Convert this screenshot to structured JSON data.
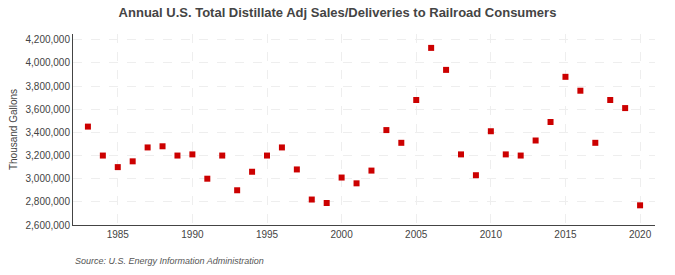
{
  "chart_data": {
    "type": "scatter",
    "title": "Annual U.S. Total Distillate Adj Sales/Deliveries to Railroad Consumers",
    "ylabel": "Thousand Gallons",
    "source": "Source: U.S. Energy Information Administration",
    "x": [
      1983,
      1984,
      1985,
      1986,
      1987,
      1988,
      1989,
      1990,
      1991,
      1992,
      1993,
      1994,
      1995,
      1996,
      1997,
      1998,
      1999,
      2000,
      2001,
      2002,
      2003,
      2004,
      2005,
      2006,
      2007,
      2008,
      2009,
      2010,
      2011,
      2012,
      2013,
      2014,
      2015,
      2016,
      2017,
      2018,
      2019,
      2020
    ],
    "values": [
      3450000,
      3200000,
      3100000,
      3150000,
      3270000,
      3280000,
      3200000,
      3210000,
      3000000,
      3200000,
      2900000,
      3060000,
      3200000,
      3270000,
      3080000,
      2820000,
      2790000,
      3010000,
      2960000,
      3070000,
      3420000,
      3310000,
      3680000,
      4130000,
      3940000,
      3210000,
      3030000,
      3410000,
      3210000,
      3200000,
      3330000,
      3490000,
      3880000,
      3760000,
      3310000,
      3680000,
      3610000,
      2770000
    ],
    "color": "#cc0000",
    "marker": "square",
    "xlim": [
      1982,
      2021
    ],
    "ylim": [
      2600000,
      4250000
    ],
    "xticks": [
      1985,
      1990,
      1995,
      2000,
      2005,
      2010,
      2015,
      2020
    ],
    "yticks": [
      {
        "value": 2600000,
        "label": "2,600,000"
      },
      {
        "value": 2800000,
        "label": "2,800,000"
      },
      {
        "value": 3000000,
        "label": "3,000,000"
      },
      {
        "value": 3200000,
        "label": "3,200,000"
      },
      {
        "value": 3400000,
        "label": "3,400,000"
      },
      {
        "value": 3600000,
        "label": "3,600,000"
      },
      {
        "value": 3800000,
        "label": "3,800,000"
      },
      {
        "value": 4000000,
        "label": "4,000,000"
      },
      {
        "value": 4200000,
        "label": "4,200,000"
      }
    ],
    "grid": true
  }
}
